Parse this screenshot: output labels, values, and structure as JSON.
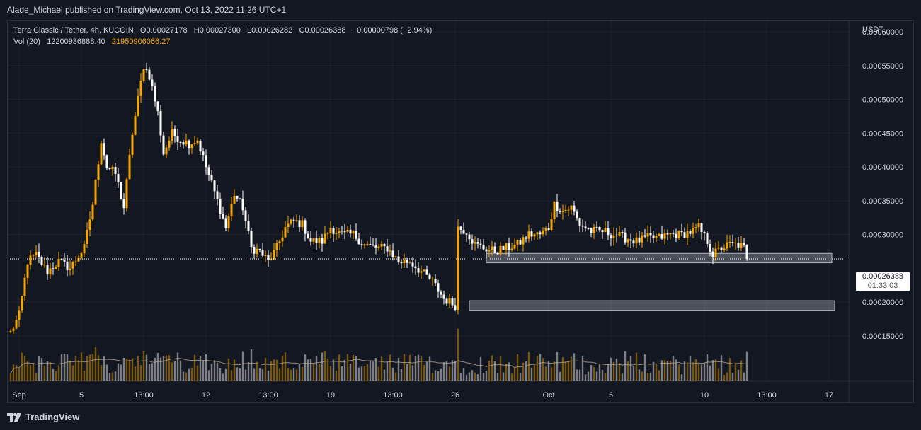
{
  "publisher_line": "Alade_Michael published on TradingView.com, Oct 13, 2022 11:26 UTC+1",
  "legend": {
    "symbol": "Terra Classic / Tether, 4h, KUCOIN",
    "o_label": "O",
    "o_value": "0.00027178",
    "h_label": "H",
    "h_value": "0.00027300",
    "l_label": "L",
    "l_value": "0.00026282",
    "c_label": "C",
    "c_value": "0.00026388",
    "change": "−0.00000798 (−2.94%)",
    "vol_label": "Vol (20)",
    "vol_value1": "12200936888.40",
    "vol_value2": "21950906066.27"
  },
  "price_tag": {
    "price": "0.00026388",
    "countdown": "01:33:03"
  },
  "footer": {
    "logo_text": "TradingView"
  },
  "colors": {
    "up": "#f7a600",
    "down": "#ffffff",
    "background": "#131722",
    "zone": "#9598a1"
  },
  "chart_data": {
    "type": "candlestick",
    "title": "Terra Classic / Tether, 4h, KUCOIN",
    "y_unit": "USDT",
    "y_ticks": [
      "0.00060000",
      "0.00055000",
      "0.00050000",
      "0.00045000",
      "0.00040000",
      "0.00035000",
      "0.00030000",
      "0.00020000",
      "0.00015000"
    ],
    "y_tick_values": [
      0.0006,
      0.00055,
      0.0005,
      0.00045,
      0.0004,
      0.00035,
      0.0003,
      0.0002,
      0.00015
    ],
    "ylim": [
      0.0001,
      0.00063
    ],
    "x_ticks": [
      {
        "label": "Sep",
        "bar": 3
      },
      {
        "label": "5",
        "bar": 25
      },
      {
        "label": "13:00",
        "bar": 47
      },
      {
        "label": "12",
        "bar": 69
      },
      {
        "label": "13:00",
        "bar": 91
      },
      {
        "label": "19",
        "bar": 113
      },
      {
        "label": "13:00",
        "bar": 135
      },
      {
        "label": "26",
        "bar": 157
      },
      {
        "label": "Oct",
        "bar": 190
      },
      {
        "label": "5",
        "bar": 212
      },
      {
        "label": "10",
        "bar": 245
      },
      {
        "label": "13:00",
        "bar": 267
      },
      {
        "label": "17",
        "bar": 289
      }
    ],
    "last_price": 0.00026388,
    "support_zones": [
      {
        "from": 0.000258,
        "to": 0.000272,
        "start_bar": 168,
        "end_bar": 290
      },
      {
        "from": 0.000187,
        "to": 0.000202,
        "start_bar": 162,
        "end_bar": 291
      }
    ],
    "volume_ma_line": true,
    "anchor_points": [
      [
        0,
        0.000155
      ],
      [
        3,
        0.00018
      ],
      [
        6,
        0.00026
      ],
      [
        9,
        0.00027
      ],
      [
        13,
        0.000245
      ],
      [
        17,
        0.00026
      ],
      [
        21,
        0.00025
      ],
      [
        26,
        0.00028
      ],
      [
        29,
        0.000345
      ],
      [
        32,
        0.00044
      ],
      [
        34,
        0.0004
      ],
      [
        37,
        0.00039
      ],
      [
        40,
        0.00034
      ],
      [
        43,
        0.00045
      ],
      [
        47,
        0.00055
      ],
      [
        49,
        0.000535
      ],
      [
        52,
        0.00048
      ],
      [
        54,
        0.00042
      ],
      [
        57,
        0.00045
      ],
      [
        60,
        0.00044
      ],
      [
        63,
        0.000435
      ],
      [
        66,
        0.00044
      ],
      [
        69,
        0.0004
      ],
      [
        73,
        0.00035
      ],
      [
        76,
        0.00031
      ],
      [
        79,
        0.00036
      ],
      [
        82,
        0.00034
      ],
      [
        85,
        0.00028
      ],
      [
        88,
        0.000275
      ],
      [
        91,
        0.00026
      ],
      [
        94,
        0.00028
      ],
      [
        97,
        0.00031
      ],
      [
        100,
        0.00032
      ],
      [
        103,
        0.000315
      ],
      [
        106,
        0.00029
      ],
      [
        110,
        0.00029
      ],
      [
        113,
        0.00031
      ],
      [
        117,
        0.0003
      ],
      [
        121,
        0.0003
      ],
      [
        125,
        0.000285
      ],
      [
        129,
        0.00028
      ],
      [
        133,
        0.00028
      ],
      [
        137,
        0.00026
      ],
      [
        141,
        0.00026
      ],
      [
        145,
        0.000245
      ],
      [
        149,
        0.00023
      ],
      [
        153,
        0.000205
      ],
      [
        157,
        0.000195
      ],
      [
        158,
        0.00031
      ],
      [
        161,
        0.000305
      ],
      [
        164,
        0.000285
      ],
      [
        167,
        0.00028
      ],
      [
        171,
        0.000275
      ],
      [
        175,
        0.00028
      ],
      [
        179,
        0.000285
      ],
      [
        183,
        0.0003
      ],
      [
        187,
        0.0003
      ],
      [
        190,
        0.00031
      ],
      [
        192,
        0.000345
      ],
      [
        195,
        0.000335
      ],
      [
        198,
        0.00034
      ],
      [
        201,
        0.000315
      ],
      [
        205,
        0.000305
      ],
      [
        209,
        0.000305
      ],
      [
        213,
        0.0003
      ],
      [
        217,
        0.000295
      ],
      [
        221,
        0.00029
      ],
      [
        225,
        0.000295
      ],
      [
        229,
        0.000295
      ],
      [
        233,
        0.0003
      ],
      [
        237,
        0.0003
      ],
      [
        241,
        0.000305
      ],
      [
        243,
        0.00031
      ],
      [
        246,
        0.00029
      ],
      [
        248,
        0.00027
      ],
      [
        251,
        0.00028
      ],
      [
        254,
        0.000285
      ],
      [
        257,
        0.000285
      ],
      [
        259,
        0.00028
      ],
      [
        260,
        0.00026388
      ]
    ]
  }
}
